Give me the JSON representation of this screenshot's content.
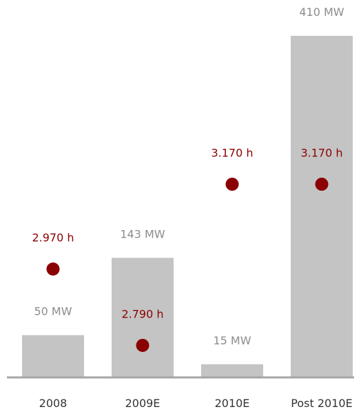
{
  "chart_data": {
    "type": "bar",
    "categories": [
      "2008",
      "2009E",
      "2010E",
      "Post 2010E"
    ],
    "series": [
      {
        "kind": "bar",
        "values": [
          50,
          143,
          15,
          410
        ],
        "labels": [
          "50 MW",
          "143 MW",
          "15 MW",
          "410 MW"
        ],
        "color": "#c4c4c4"
      },
      {
        "kind": "scatter",
        "values": [
          2970,
          2790,
          3170,
          3170
        ],
        "labels": [
          "2.970 h",
          "2.790 h",
          "3.170 h",
          "3.170 h"
        ],
        "color": "#8b0000"
      }
    ],
    "bar_ylim": [
      0,
      410
    ],
    "point_ylim": [
      2630,
      3450
    ],
    "grid": false,
    "legend": "none"
  }
}
